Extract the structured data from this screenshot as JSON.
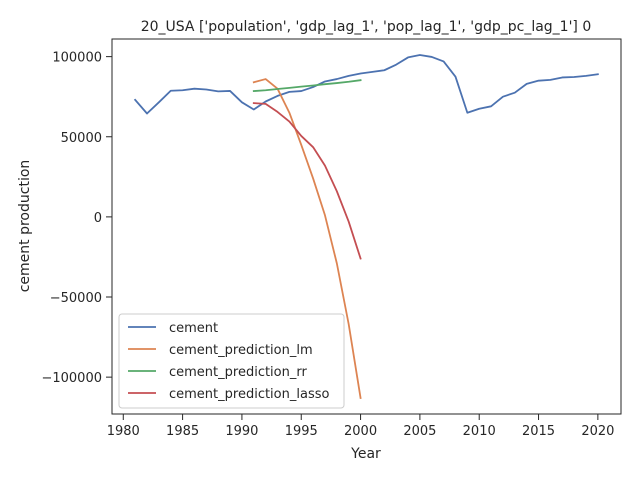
{
  "chart_data": {
    "type": "line",
    "title": "20_USA ['population', 'gdp_lag_1', 'pop_lag_1', 'gdp_pc_lag_1'] 0",
    "xlabel": "Year",
    "ylabel": "cement production",
    "xlim": [
      1979.05,
      2021.95
    ],
    "ylim": [
      -123000,
      111000
    ],
    "xticks": [
      1980,
      1985,
      1990,
      1995,
      2000,
      2005,
      2010,
      2015,
      2020
    ],
    "yticks": [
      -100000,
      -50000,
      0,
      50000,
      100000
    ],
    "ytick_labels": [
      "−100000",
      "−50000",
      "0",
      "50000",
      "100000"
    ],
    "grid": false,
    "legend_position": "lower-left",
    "series": [
      {
        "name": "cement",
        "color": "#4c72b0",
        "x": [
          1981,
          1982,
          1983,
          1984,
          1985,
          1986,
          1987,
          1988,
          1989,
          1990,
          1991,
          1992,
          1993,
          1994,
          1995,
          1996,
          1997,
          1998,
          1999,
          2000,
          2001,
          2002,
          2003,
          2004,
          2005,
          2006,
          2007,
          2008,
          2009,
          2010,
          2011,
          2012,
          2013,
          2014,
          2015,
          2016,
          2017,
          2018,
          2019,
          2020
        ],
        "y": [
          73000,
          64500,
          71500,
          78700,
          79000,
          80000,
          79500,
          78300,
          78600,
          71500,
          67000,
          72000,
          75500,
          78000,
          78500,
          81000,
          84500,
          86000,
          88000,
          89500,
          90500,
          91500,
          95000,
          99500,
          101000,
          99800,
          97000,
          87500,
          65000,
          67500,
          69000,
          75000,
          77500,
          83000,
          85000,
          85500,
          87000,
          87300,
          88000,
          89000
        ]
      },
      {
        "name": "cement_prediction_lm",
        "color": "#dd8452",
        "x": [
          1991,
          1992,
          1993,
          1994,
          1995,
          1996,
          1997,
          1998,
          1999,
          2000
        ],
        "y": [
          84000,
          86000,
          80000,
          65000,
          45000,
          24000,
          1000,
          -29000,
          -67000,
          -113000
        ]
      },
      {
        "name": "cement_prediction_rr",
        "color": "#55a868",
        "x": [
          1991,
          1992,
          1993,
          1994,
          1995,
          1996,
          1997,
          1998,
          1999,
          2000
        ],
        "y": [
          78500,
          79000,
          79800,
          80500,
          81300,
          82000,
          82800,
          83500,
          84300,
          85300
        ]
      },
      {
        "name": "cement_prediction_lasso",
        "color": "#c44e52",
        "x": [
          1991,
          1992,
          1993,
          1994,
          1995,
          1996,
          1997,
          1998,
          1999,
          2000
        ],
        "y": [
          71000,
          70500,
          65500,
          59500,
          50500,
          43500,
          32000,
          16000,
          -3000,
          -26000
        ]
      }
    ]
  }
}
